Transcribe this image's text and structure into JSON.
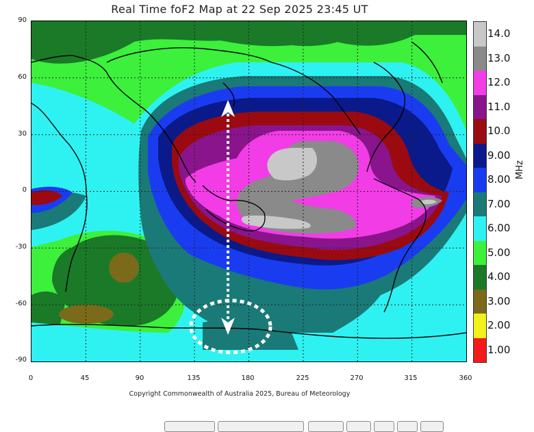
{
  "title": "Real Time foF2 Map at 22 Sep 2025 23:45 UT",
  "copyright": "Copyright Commonwealth of Australia 2025, Bureau of Meteorology",
  "y_ticks": [
    "90",
    "60",
    "30",
    "0",
    "-30",
    "-60",
    "-90"
  ],
  "x_ticks": [
    "0",
    "45",
    "90",
    "135",
    "180",
    "225",
    "270",
    "315",
    "360"
  ],
  "colorbar": {
    "unit": "MHz",
    "levels": [
      {
        "label": "14.0",
        "color": "#c8c8c8"
      },
      {
        "label": "13.0",
        "color": "#8a8a8a"
      },
      {
        "label": "12.0",
        "color": "#f23ce6"
      },
      {
        "label": "11.0",
        "color": "#8a148c"
      },
      {
        "label": "10.0",
        "color": "#9a0a10"
      },
      {
        "label": "9.00",
        "color": "#0a1a8a"
      },
      {
        "label": "8.00",
        "color": "#1a3cf0"
      },
      {
        "label": "7.00",
        "color": "#1a7a78"
      },
      {
        "label": "6.00",
        "color": "#2ef2f2"
      },
      {
        "label": "5.00",
        "color": "#3cf03c"
      },
      {
        "label": "4.00",
        "color": "#1a7a28"
      },
      {
        "label": "3.00",
        "color": "#7a6a1a"
      },
      {
        "label": "2.00",
        "color": "#f2f21a"
      },
      {
        "label": "1.00",
        "color": "#f21a1a"
      }
    ]
  },
  "map": {
    "x_range_deg": [
      0,
      360
    ],
    "y_range_deg": [
      -90,
      90
    ],
    "grid": true,
    "annotation": "dotted white double-headed vertical arrow near 160 E linking 55 N to -70 S, with dotted white ellipse around the southern end"
  }
}
